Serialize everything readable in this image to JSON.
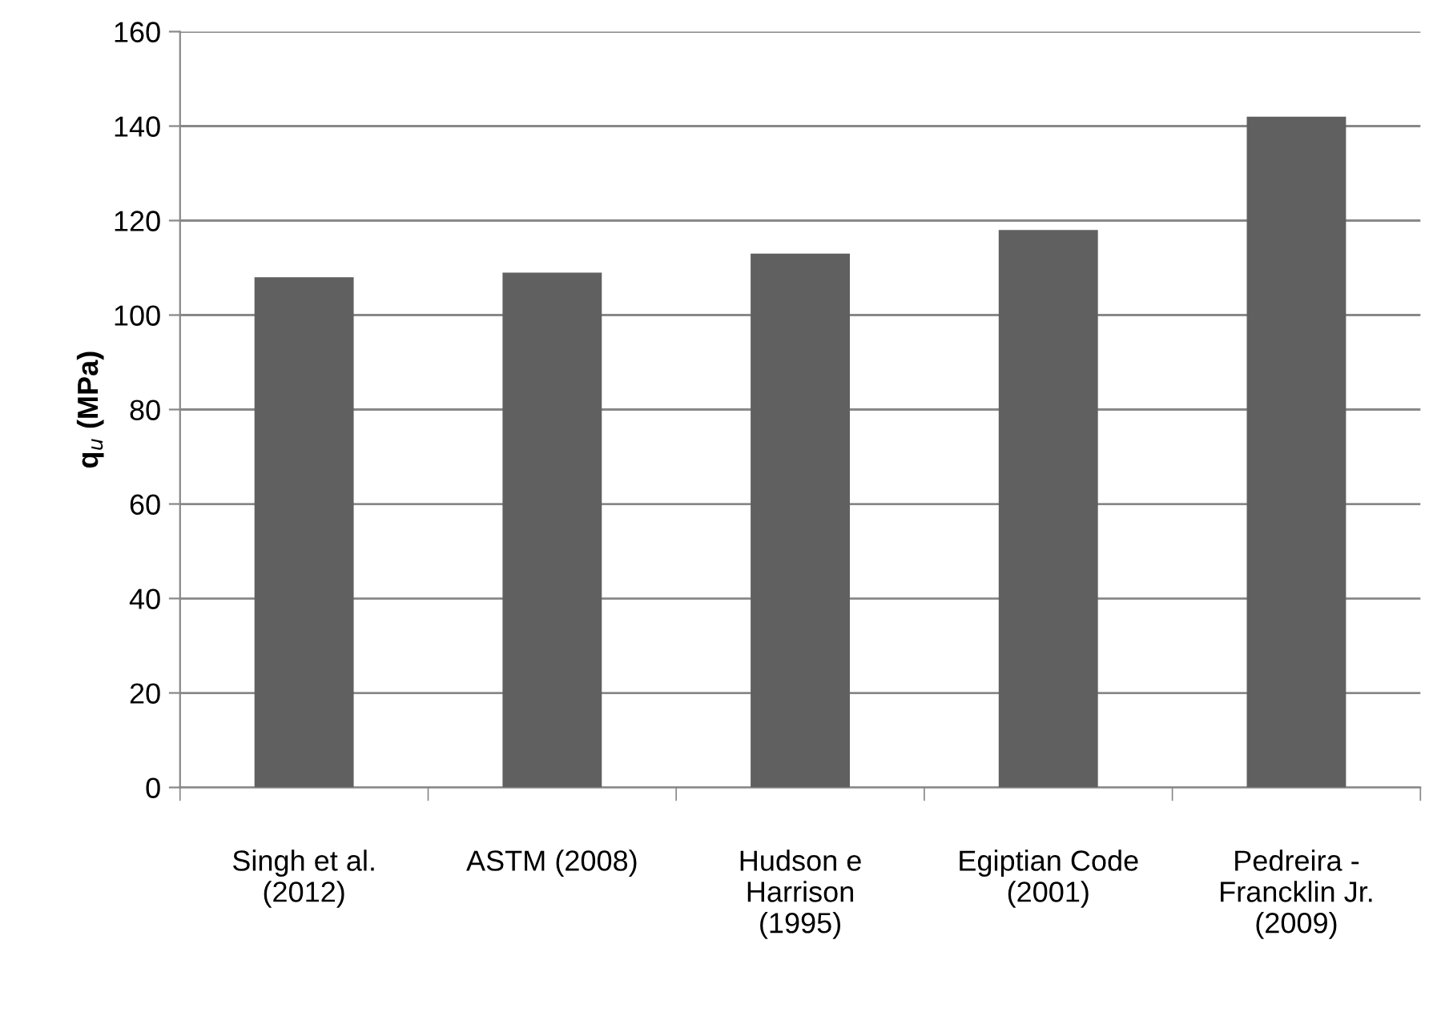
{
  "chart_data": {
    "type": "bar",
    "ylabel": "q$_{u}$ (MPa)",
    "categories": [
      "Singh et al.\n(2012)",
      "ASTM (2008)",
      "Hudson e\nHarrison\n(1995)",
      "Egiptian Code\n(2001)",
      "Pedreira -\nFrancklin Jr.\n(2009)"
    ],
    "values": [
      108,
      109,
      113,
      118,
      142
    ],
    "color": "#606060",
    "ylim": [
      0,
      160
    ],
    "yticks": [
      0,
      20,
      40,
      60,
      80,
      100,
      120,
      140,
      160
    ],
    "grid": "y"
  }
}
